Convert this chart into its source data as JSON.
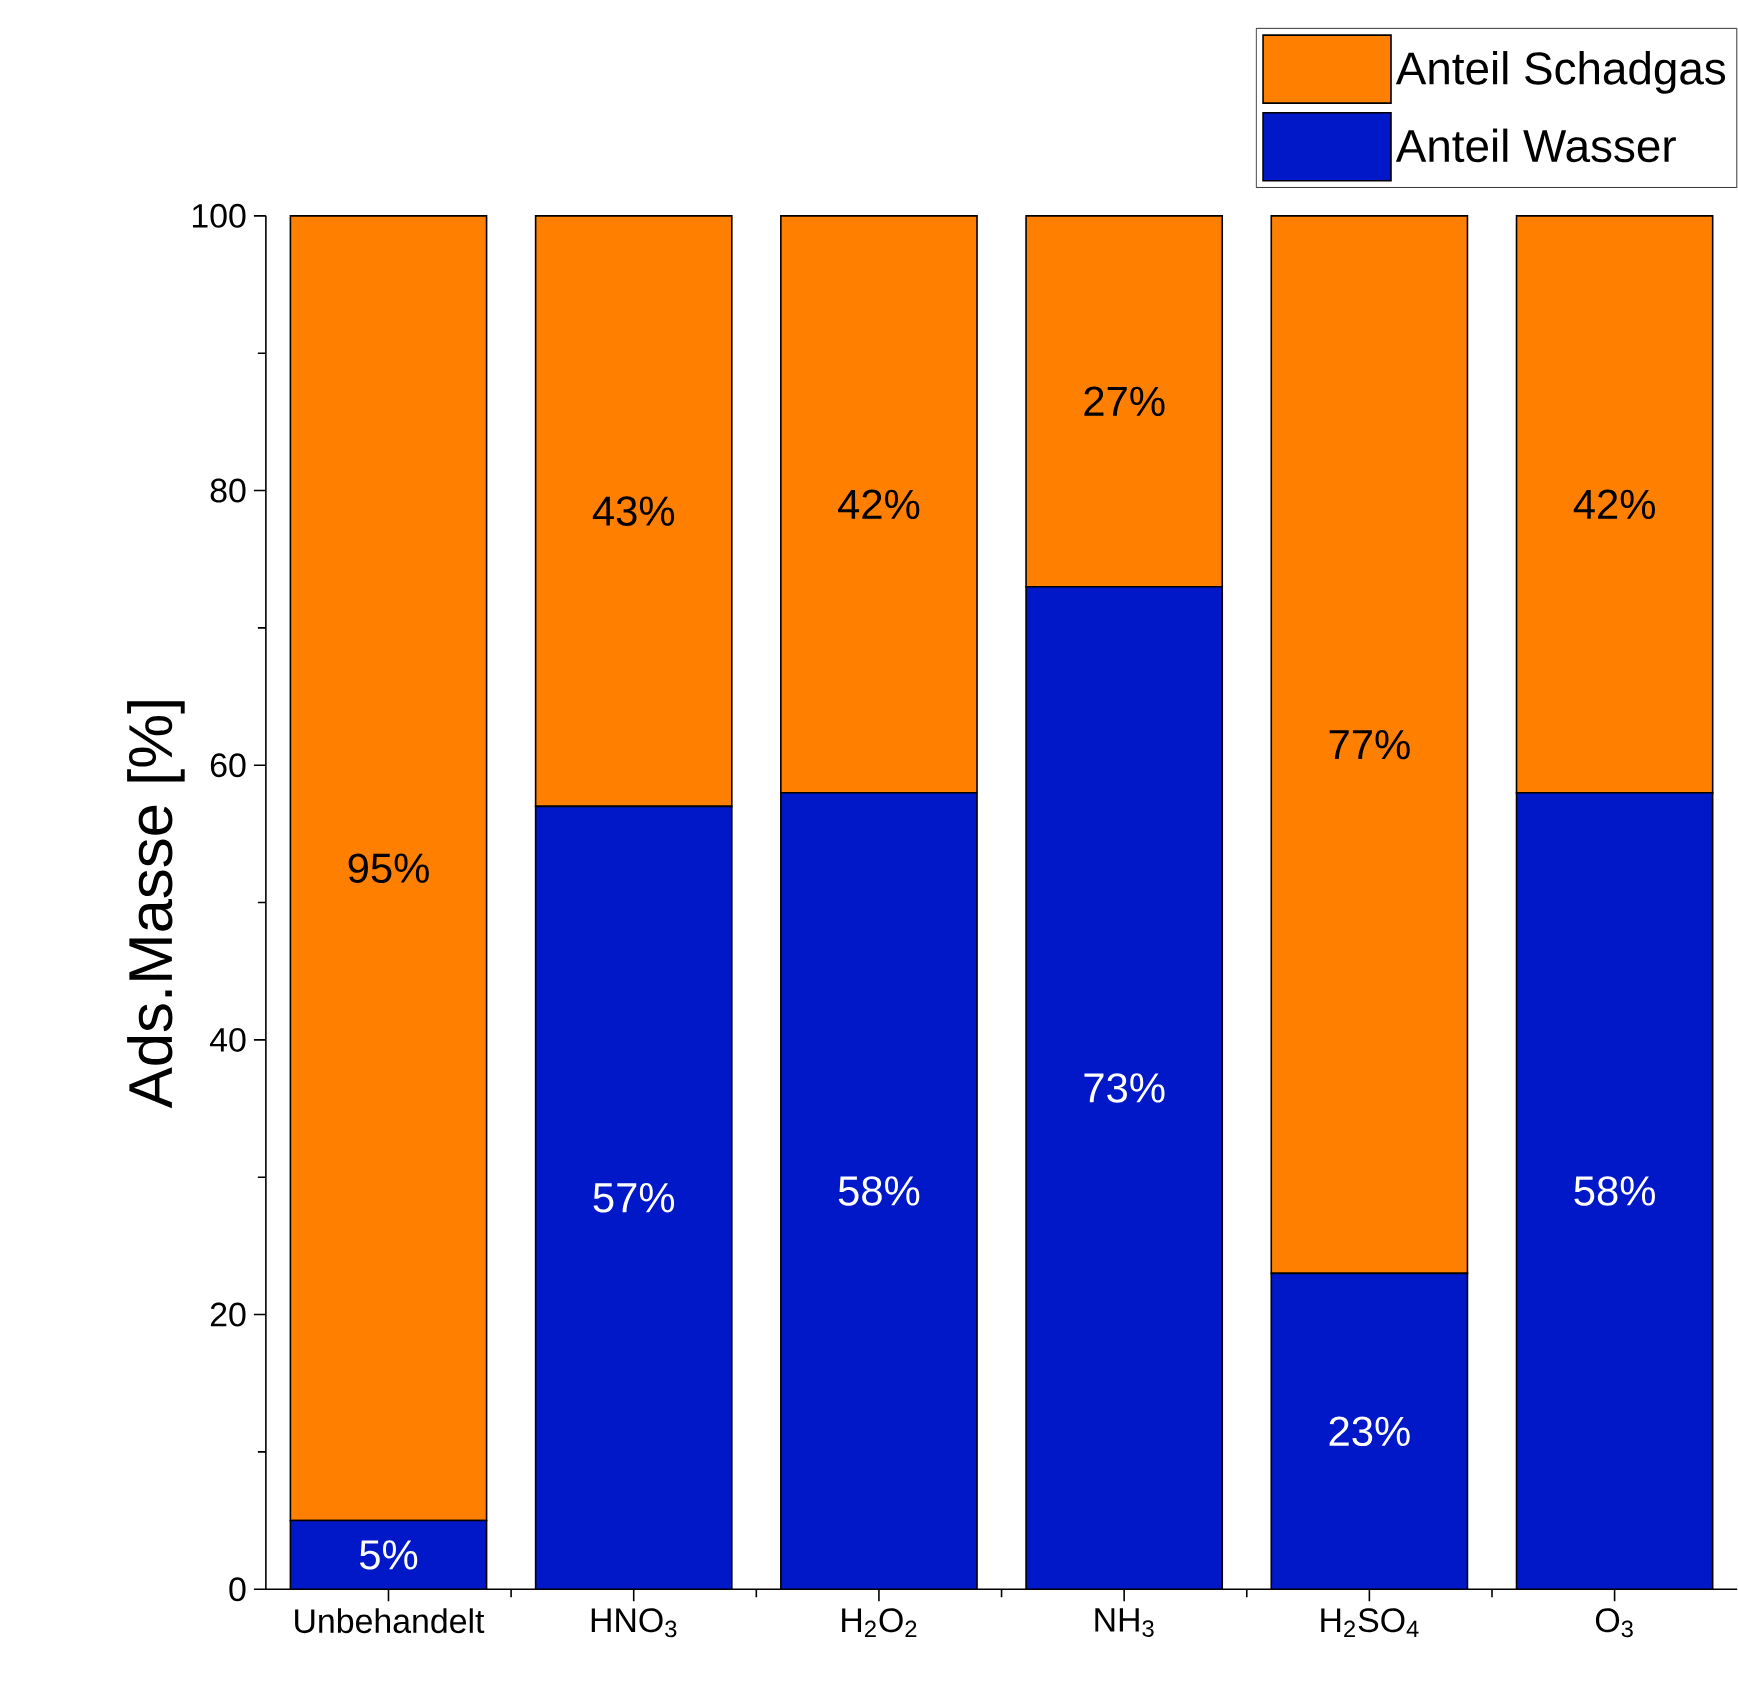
{
  "chart_data": {
    "type": "bar",
    "stacked": true,
    "ylabel": "Ads.Masse [%]",
    "categories": [
      "Unbehandelt",
      "HNO$_{3}$",
      "H$_{2}$O$_{2}$",
      "NH$_{3}$",
      "H$_{2}$SO$_{4}$",
      "O$_{3}$"
    ],
    "series": [
      {
        "name": "Anteil Wasser",
        "color": "#0018c8",
        "values": [
          5,
          57,
          58,
          73,
          23,
          58
        ],
        "value_labels": [
          "5%",
          "57%",
          "58%",
          "73%",
          "23%",
          "58%"
        ]
      },
      {
        "name": "Anteil Schadgas",
        "color": "#ff8000",
        "values": [
          95,
          43,
          42,
          27,
          77,
          42
        ],
        "value_labels": [
          "95%",
          "43%",
          "42%",
          "27%",
          "77%",
          "42%"
        ]
      }
    ],
    "ylim": [
      0,
      100
    ],
    "yticks": [
      0,
      20,
      40,
      60,
      80,
      100
    ],
    "legend": "top right"
  }
}
